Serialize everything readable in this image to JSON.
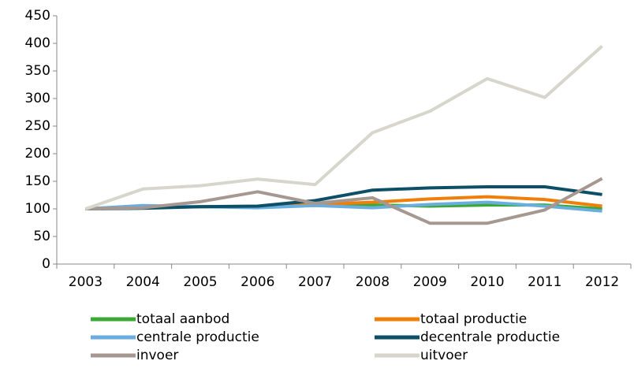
{
  "chart_data": {
    "type": "line",
    "categories": [
      "2003",
      "2004",
      "2005",
      "2006",
      "2007",
      "2008",
      "2009",
      "2010",
      "2011",
      "2012"
    ],
    "series": [
      {
        "name": "totaal aanbod",
        "color": "#3aaa35",
        "values": [
          100,
          103,
          104,
          104,
          106,
          107,
          105,
          107,
          107,
          100
        ]
      },
      {
        "name": "totaal productie",
        "color": "#f07f09",
        "values": [
          100,
          103,
          104,
          104,
          108,
          112,
          118,
          122,
          117,
          105
        ]
      },
      {
        "name": "centrale productie",
        "color": "#6aaee0",
        "values": [
          100,
          106,
          104,
          102,
          106,
          102,
          108,
          112,
          105,
          96
        ]
      },
      {
        "name": "decentrale productie",
        "color": "#0e4f68",
        "values": [
          100,
          101,
          104,
          105,
          115,
          134,
          138,
          140,
          140,
          126
        ]
      },
      {
        "name": "invoer",
        "color": "#a69890",
        "values": [
          100,
          102,
          113,
          131,
          110,
          120,
          74,
          74,
          98,
          155
        ]
      },
      {
        "name": "uitvoer",
        "color": "#d6d6cc",
        "values": [
          100,
          136,
          142,
          154,
          144,
          238,
          277,
          336,
          302,
          395
        ]
      }
    ],
    "ylim": [
      0,
      450
    ],
    "yticks": [
      0,
      50,
      100,
      150,
      200,
      250,
      300,
      350,
      400,
      450
    ]
  }
}
